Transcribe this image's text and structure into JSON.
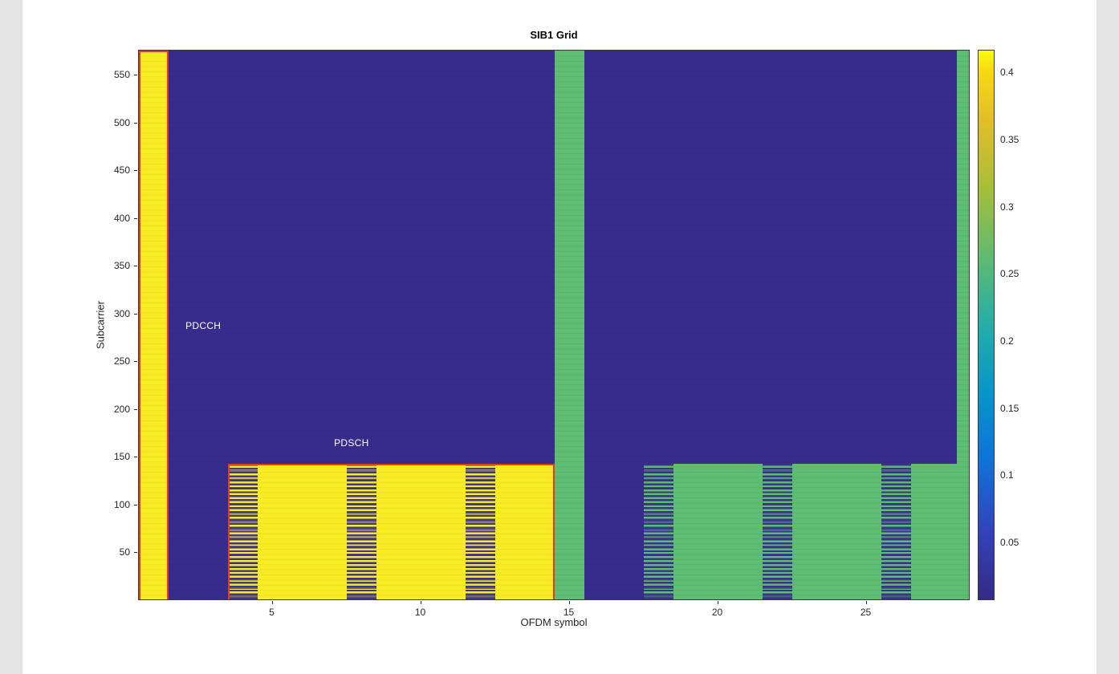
{
  "chart_data": {
    "type": "heatmap",
    "title": "SIB1 Grid",
    "xlabel": "OFDM symbol",
    "ylabel": "Subcarrier",
    "x_range": [
      1,
      28
    ],
    "y_range": [
      1,
      576
    ],
    "x_ticks": [
      5,
      10,
      15,
      20,
      25
    ],
    "y_ticks": [
      50,
      100,
      150,
      200,
      250,
      300,
      350,
      400,
      450,
      500,
      550
    ],
    "color_range": [
      0.007,
      0.417
    ],
    "colorbar_ticks": [
      0.05,
      0.1,
      0.15,
      0.2,
      0.25,
      0.3,
      0.35,
      0.4
    ],
    "background_value": 0.007,
    "colors": {
      "background": "#372c8b",
      "yellow": "#f8ec25",
      "green": "#5dbd72",
      "outline": "#e63a20",
      "annotation_text": "#ffffff"
    },
    "colormap_stops": [
      {
        "pos": 0.0,
        "color": "#352a87"
      },
      {
        "pos": 0.125,
        "color": "#3243ba"
      },
      {
        "pos": 0.25,
        "color": "#1071d8"
      },
      {
        "pos": 0.375,
        "color": "#0695ca"
      },
      {
        "pos": 0.5,
        "color": "#26ada8"
      },
      {
        "pos": 0.625,
        "color": "#60bb70"
      },
      {
        "pos": 0.75,
        "color": "#a7be39"
      },
      {
        "pos": 0.875,
        "color": "#e4be29"
      },
      {
        "pos": 0.96,
        "color": "#f8d813"
      },
      {
        "pos": 1.0,
        "color": "#f9fb0e"
      }
    ],
    "regions": [
      {
        "name": "pdcch-column",
        "x0": 0,
        "x1": 1,
        "y0": 0,
        "y1": 576,
        "fill": "yellow",
        "value": 0.417,
        "outline": true
      },
      {
        "name": "pdsch-block",
        "x0": 3,
        "x1": 14,
        "y0": 0,
        "y1": 144,
        "fill": "yellow",
        "value": 0.417,
        "outline": true
      },
      {
        "name": "pdsch-dmrs-1",
        "x0": 3,
        "x1": 4,
        "y0": 0,
        "y1": 144,
        "fill": "yellow",
        "value": 0.417,
        "stripes": true
      },
      {
        "name": "pdsch-dmrs-2",
        "x0": 7,
        "x1": 8,
        "y0": 0,
        "y1": 144,
        "fill": "yellow",
        "value": 0.417,
        "stripes": true
      },
      {
        "name": "pdsch-dmrs-3",
        "x0": 11,
        "x1": 12,
        "y0": 0,
        "y1": 144,
        "fill": "yellow",
        "value": 0.417,
        "stripes": true
      },
      {
        "name": "green-column-15",
        "x0": 14,
        "x1": 15,
        "y0": 0,
        "y1": 576,
        "fill": "green",
        "value": 0.26
      },
      {
        "name": "green-block",
        "x0": 17,
        "x1": 28,
        "y0": 0,
        "y1": 144,
        "fill": "green",
        "value": 0.26
      },
      {
        "name": "green-dmrs-1",
        "x0": 17,
        "x1": 18,
        "y0": 0,
        "y1": 144,
        "fill": "green",
        "value": 0.26,
        "stripes": true
      },
      {
        "name": "green-dmrs-2",
        "x0": 21,
        "x1": 22,
        "y0": 0,
        "y1": 144,
        "fill": "green",
        "value": 0.26,
        "stripes": true
      },
      {
        "name": "green-dmrs-3",
        "x0": 25,
        "x1": 26,
        "y0": 0,
        "y1": 144,
        "fill": "green",
        "value": 0.26,
        "stripes": true
      },
      {
        "name": "green-column-right",
        "x0": 27.55,
        "x1": 28,
        "y0": 0,
        "y1": 576,
        "fill": "green",
        "value": 0.26
      }
    ],
    "annotations": [
      {
        "text": "PDCCH",
        "x": 1.57,
        "y": 288
      },
      {
        "text": "PDSCH",
        "x": 6.57,
        "y": 165
      }
    ],
    "legend": "colorbar-right",
    "grid": false
  }
}
